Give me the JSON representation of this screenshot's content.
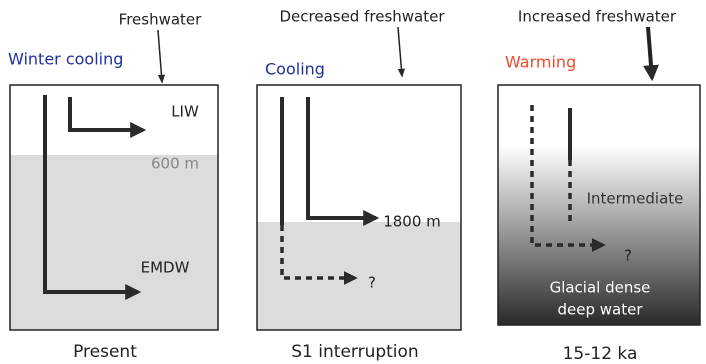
{
  "panels": [
    {
      "freshwater": "Freshwater",
      "forcing": "Winter cooling",
      "labels": [
        "LIW",
        "600 m",
        "EMDW"
      ],
      "caption": "Present"
    },
    {
      "freshwater": "Decreased freshwater",
      "forcing": "Cooling",
      "labels": [
        "1800 m",
        "?"
      ],
      "caption": "S1 interruption"
    },
    {
      "freshwater": "Increased freshwater",
      "forcing": "Warming",
      "labels": [
        "Intermediate",
        "?",
        "Glacial dense",
        "deep water"
      ],
      "caption": "15-12 ka"
    }
  ]
}
